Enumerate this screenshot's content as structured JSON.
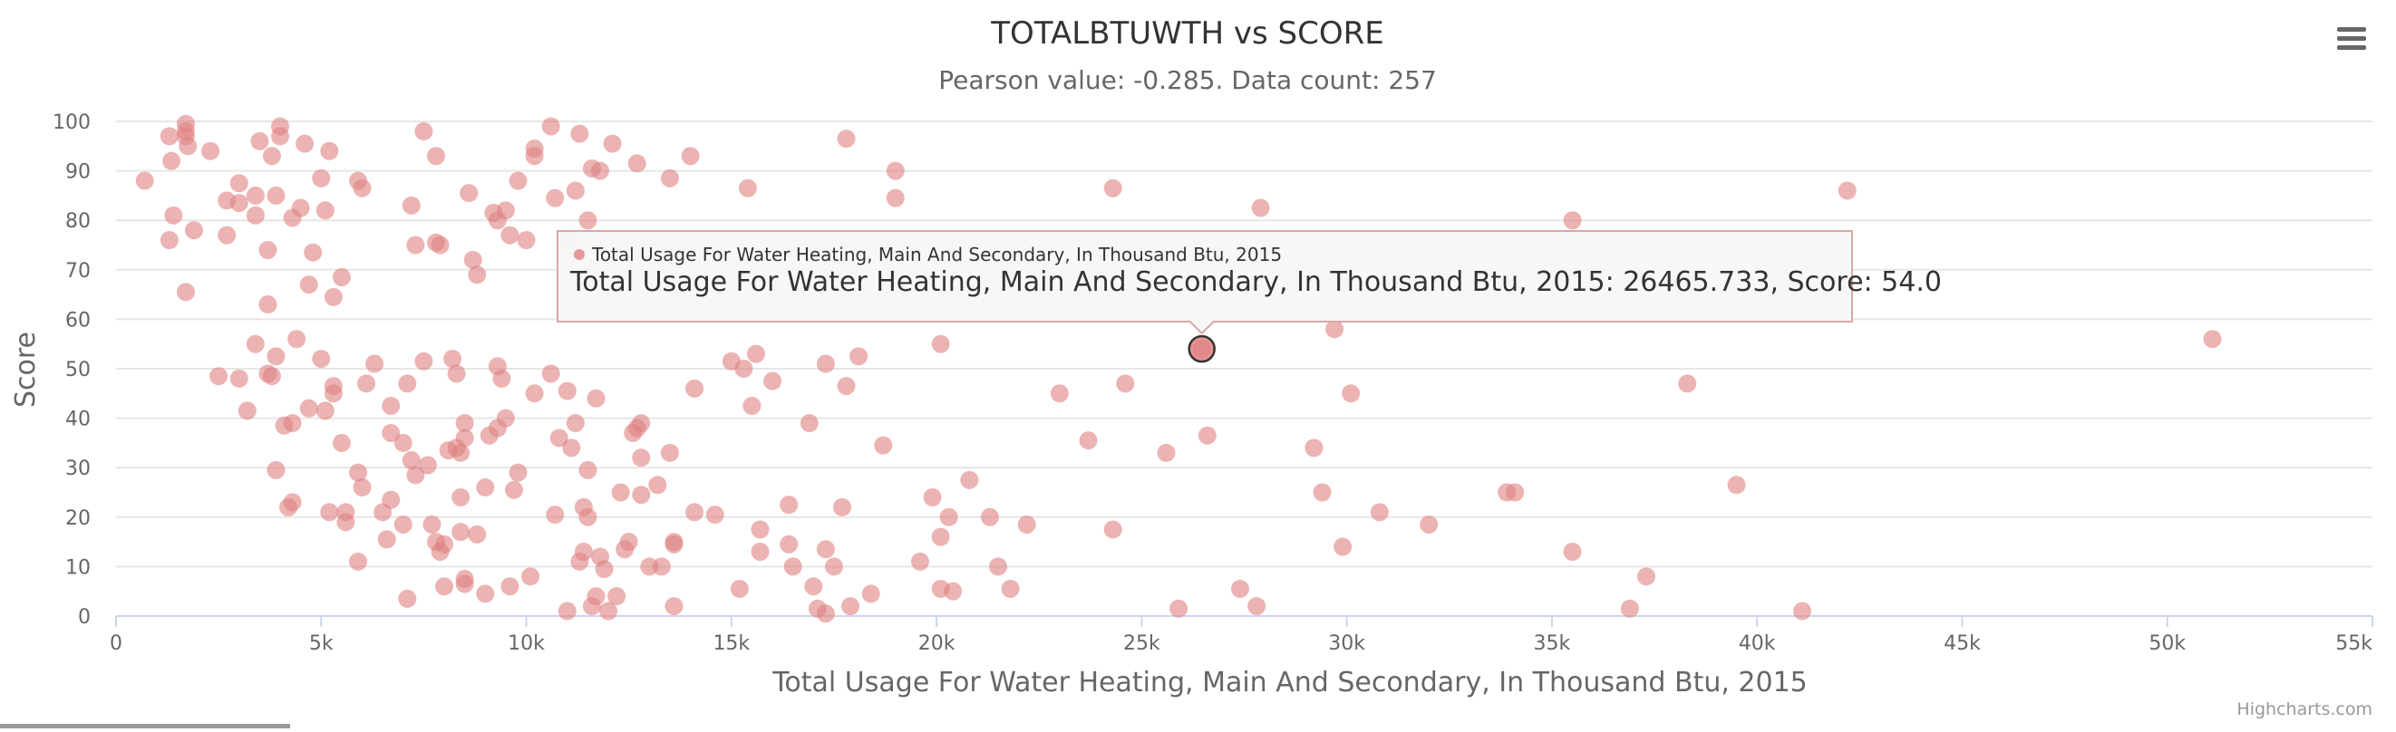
{
  "chart_data": {
    "type": "scatter",
    "title": "TOTALBTUWTH vs SCORE",
    "subtitle": "Pearson value: -0.285. Data count: 257",
    "xlabel": "Total Usage For Water Heating, Main And Secondary, In Thousand Btu, 2015",
    "ylabel": "Score",
    "xlim": [
      0,
      55000
    ],
    "ylim": [
      0,
      100
    ],
    "xticks": [
      {
        "v": 0,
        "label": "0"
      },
      {
        "v": 5000,
        "label": "5k"
      },
      {
        "v": 10000,
        "label": "10k"
      },
      {
        "v": 15000,
        "label": "15k"
      },
      {
        "v": 20000,
        "label": "20k"
      },
      {
        "v": 25000,
        "label": "25k"
      },
      {
        "v": 30000,
        "label": "30k"
      },
      {
        "v": 35000,
        "label": "35k"
      },
      {
        "v": 40000,
        "label": "40k"
      },
      {
        "v": 45000,
        "label": "45k"
      },
      {
        "v": 50000,
        "label": "50k"
      },
      {
        "v": 55000,
        "label": "55k"
      }
    ],
    "yticks": [
      {
        "v": 0,
        "label": "0"
      },
      {
        "v": 10,
        "label": "10"
      },
      {
        "v": 20,
        "label": "20"
      },
      {
        "v": 30,
        "label": "30"
      },
      {
        "v": 40,
        "label": "40"
      },
      {
        "v": 50,
        "label": "50"
      },
      {
        "v": 60,
        "label": "60"
      },
      {
        "v": 70,
        "label": "70"
      },
      {
        "v": 80,
        "label": "80"
      },
      {
        "v": 90,
        "label": "90"
      },
      {
        "v": 100,
        "label": "100"
      }
    ],
    "grid": "horizontal",
    "series": [
      {
        "name": "Total Usage For Water Heating, Main And Secondary, In Thousand Btu, 2015",
        "color": "#e08080",
        "points": [
          [
            700,
            88
          ],
          [
            1300,
            97
          ],
          [
            1350,
            92
          ],
          [
            1400,
            81
          ],
          [
            1300,
            76
          ],
          [
            1700,
            97
          ],
          [
            1700,
            99.5
          ],
          [
            1750,
            95
          ],
          [
            1700,
            98
          ],
          [
            1900,
            78
          ],
          [
            1700,
            65.5
          ],
          [
            2300,
            94
          ],
          [
            2700,
            84
          ],
          [
            2700,
            77
          ],
          [
            3000,
            83.5
          ],
          [
            3000,
            87.5
          ],
          [
            3400,
            85
          ],
          [
            3400,
            81
          ],
          [
            3500,
            96
          ],
          [
            3700,
            74
          ],
          [
            3800,
            93
          ],
          [
            3900,
            85
          ],
          [
            3700,
            63
          ],
          [
            4000,
            99
          ],
          [
            4000,
            97
          ],
          [
            4300,
            80.5
          ],
          [
            4500,
            82.5
          ],
          [
            4600,
            95.5
          ],
          [
            4700,
            67
          ],
          [
            4800,
            73.5
          ],
          [
            5000,
            88.5
          ],
          [
            5100,
            82
          ],
          [
            5200,
            94
          ],
          [
            5300,
            64.5
          ],
          [
            5500,
            68.5
          ],
          [
            5900,
            88
          ],
          [
            6000,
            86.5
          ],
          [
            7200,
            83
          ],
          [
            7300,
            75
          ],
          [
            7500,
            98
          ],
          [
            7800,
            93
          ],
          [
            7800,
            75.5
          ],
          [
            7900,
            75
          ],
          [
            8600,
            85.5
          ],
          [
            8700,
            72
          ],
          [
            8800,
            69
          ],
          [
            9200,
            81.5
          ],
          [
            9300,
            80
          ],
          [
            9500,
            82
          ],
          [
            9600,
            77
          ],
          [
            9800,
            88
          ],
          [
            10000,
            76
          ],
          [
            10200,
            94.5
          ],
          [
            10200,
            93
          ],
          [
            10600,
            99
          ],
          [
            10700,
            84.5
          ],
          [
            11000,
            76
          ],
          [
            11200,
            86
          ],
          [
            11300,
            97.5
          ],
          [
            11500,
            80
          ],
          [
            11600,
            90.5
          ],
          [
            11800,
            90
          ],
          [
            12100,
            95.5
          ],
          [
            12700,
            91.5
          ],
          [
            13500,
            88.5
          ],
          [
            14000,
            93
          ],
          [
            15400,
            86.5
          ],
          [
            17800,
            96.5
          ],
          [
            19000,
            90
          ],
          [
            19000,
            84.5
          ],
          [
            24300,
            86.5
          ],
          [
            27900,
            82.5
          ],
          [
            35500,
            80
          ],
          [
            42200,
            86
          ],
          [
            27900,
            73
          ],
          [
            2500,
            48.5
          ],
          [
            3000,
            48
          ],
          [
            3200,
            41.5
          ],
          [
            3400,
            55
          ],
          [
            3700,
            49
          ],
          [
            3800,
            48.5
          ],
          [
            3900,
            52.5
          ],
          [
            3900,
            29.5
          ],
          [
            4100,
            38.5
          ],
          [
            4200,
            22
          ],
          [
            4300,
            39
          ],
          [
            4300,
            23
          ],
          [
            4400,
            56
          ],
          [
            4700,
            42
          ],
          [
            5000,
            52
          ],
          [
            5100,
            41.5
          ],
          [
            5200,
            21
          ],
          [
            5300,
            46.5
          ],
          [
            5300,
            45
          ],
          [
            5500,
            35
          ],
          [
            5600,
            21
          ],
          [
            5600,
            19
          ],
          [
            5900,
            29
          ],
          [
            5900,
            11
          ],
          [
            6000,
            26
          ],
          [
            6100,
            47
          ],
          [
            6300,
            51
          ],
          [
            6500,
            21
          ],
          [
            6600,
            15.5
          ],
          [
            6700,
            42.5
          ],
          [
            6700,
            37
          ],
          [
            6700,
            23.5
          ],
          [
            7000,
            35
          ],
          [
            7000,
            18.5
          ],
          [
            7100,
            47
          ],
          [
            7100,
            3.5
          ],
          [
            7200,
            31.5
          ],
          [
            7300,
            28.5
          ],
          [
            7500,
            51.5
          ],
          [
            7600,
            30.5
          ],
          [
            7700,
            18.5
          ],
          [
            7800,
            15
          ],
          [
            7900,
            13
          ],
          [
            8000,
            6
          ],
          [
            8000,
            14.5
          ],
          [
            8100,
            33.5
          ],
          [
            8200,
            52
          ],
          [
            8300,
            49
          ],
          [
            8300,
            34
          ],
          [
            8400,
            33
          ],
          [
            8400,
            24
          ],
          [
            8400,
            17
          ],
          [
            8500,
            39
          ],
          [
            8500,
            36
          ],
          [
            8500,
            7.5
          ],
          [
            8500,
            6.5
          ],
          [
            8800,
            16.5
          ],
          [
            9000,
            26
          ],
          [
            9000,
            4.5
          ],
          [
            9100,
            36.5
          ],
          [
            9300,
            50.5
          ],
          [
            9300,
            38
          ],
          [
            9400,
            48
          ],
          [
            9500,
            40
          ],
          [
            9600,
            6
          ],
          [
            9700,
            25.5
          ],
          [
            9800,
            29
          ],
          [
            10100,
            8
          ],
          [
            10200,
            45
          ],
          [
            10600,
            49
          ],
          [
            10700,
            20.5
          ],
          [
            10800,
            36
          ],
          [
            11000,
            45.5
          ],
          [
            11000,
            1
          ],
          [
            11100,
            34
          ],
          [
            11200,
            39
          ],
          [
            11300,
            11
          ],
          [
            11400,
            22
          ],
          [
            11400,
            13
          ],
          [
            11500,
            20
          ],
          [
            11500,
            29.5
          ],
          [
            11600,
            2
          ],
          [
            11700,
            44
          ],
          [
            11700,
            4
          ],
          [
            11800,
            12
          ],
          [
            11900,
            9.5
          ],
          [
            12000,
            1
          ],
          [
            12200,
            4
          ],
          [
            12300,
            25
          ],
          [
            12400,
            13.5
          ],
          [
            12500,
            15
          ],
          [
            12600,
            37
          ],
          [
            12700,
            38
          ],
          [
            12800,
            39
          ],
          [
            12800,
            32
          ],
          [
            12800,
            24.5
          ],
          [
            13000,
            10
          ],
          [
            13200,
            26.5
          ],
          [
            13300,
            10
          ],
          [
            13500,
            33
          ],
          [
            13600,
            15
          ],
          [
            13600,
            14.5
          ],
          [
            13600,
            2
          ],
          [
            14100,
            46
          ],
          [
            14100,
            21
          ],
          [
            14600,
            20.5
          ],
          [
            15000,
            51.5
          ],
          [
            15200,
            5.5
          ],
          [
            15300,
            50
          ],
          [
            15500,
            42.5
          ],
          [
            15600,
            53
          ],
          [
            15700,
            17.5
          ],
          [
            15700,
            13
          ],
          [
            16000,
            47.5
          ],
          [
            16400,
            22.5
          ],
          [
            16400,
            14.5
          ],
          [
            16500,
            10
          ],
          [
            16900,
            39
          ],
          [
            17000,
            6
          ],
          [
            17100,
            1.5
          ],
          [
            17300,
            51
          ],
          [
            17300,
            13.5
          ],
          [
            17300,
            0.5
          ],
          [
            17500,
            10
          ],
          [
            17700,
            22
          ],
          [
            17800,
            46.5
          ],
          [
            17900,
            2
          ],
          [
            18100,
            52.5
          ],
          [
            18400,
            4.5
          ],
          [
            18700,
            34.5
          ],
          [
            19600,
            11
          ],
          [
            19900,
            24
          ],
          [
            20100,
            55
          ],
          [
            20100,
            16
          ],
          [
            20100,
            5.5
          ],
          [
            20300,
            20
          ],
          [
            20400,
            5
          ],
          [
            20800,
            27.5
          ],
          [
            21300,
            20
          ],
          [
            21500,
            10
          ],
          [
            21800,
            5.5
          ],
          [
            22200,
            18.5
          ],
          [
            23000,
            45
          ],
          [
            23700,
            35.5
          ],
          [
            24300,
            17.5
          ],
          [
            24600,
            47
          ],
          [
            25600,
            33
          ],
          [
            25900,
            1.5
          ],
          [
            26465.733,
            54
          ],
          [
            26600,
            36.5
          ],
          [
            27400,
            5.5
          ],
          [
            27800,
            2
          ],
          [
            29200,
            34
          ],
          [
            29400,
            25
          ],
          [
            29700,
            58
          ],
          [
            29900,
            14
          ],
          [
            30100,
            45
          ],
          [
            30800,
            21
          ],
          [
            32000,
            18.5
          ],
          [
            33900,
            25
          ],
          [
            34100,
            25
          ],
          [
            35500,
            13
          ],
          [
            36900,
            1.5
          ],
          [
            37300,
            8
          ],
          [
            38300,
            47
          ],
          [
            39500,
            26.5
          ],
          [
            41100,
            1
          ],
          [
            51100,
            56
          ]
        ]
      }
    ],
    "tooltip": {
      "series_label": "Total Usage For Water Heating, Main And Secondary, In Thousand Btu, 2015",
      "text": "Total Usage For Water Heating, Main And Secondary, In Thousand Btu, 2015: 26465.733, Score: 54.0",
      "x": 26465.733,
      "y": 54.0
    },
    "credits": "Highcharts.com"
  },
  "ui": {
    "menu_icon": "hamburger-menu-icon"
  }
}
